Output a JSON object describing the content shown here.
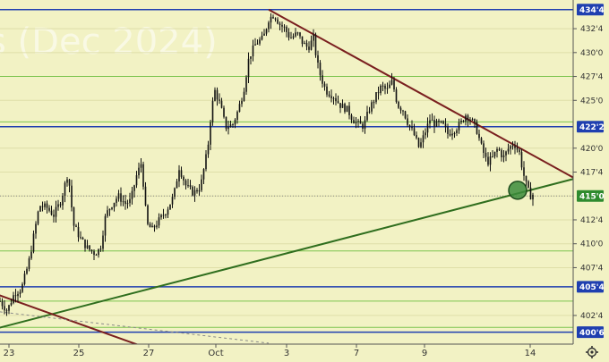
{
  "chart_data": {
    "type": "candlestick",
    "title": "s (Dec 2024)",
    "y_ticks": [
      "434'4",
      "432'4",
      "430'0",
      "427'4",
      "425'0",
      "422'2",
      "420'0",
      "417'4",
      "415'0",
      "412'4",
      "410'0",
      "407'4",
      "405'4",
      "402'4",
      "400'6"
    ],
    "x_ticks": [
      "23",
      "25",
      "27",
      "Oct",
      "3",
      "7",
      "9",
      "14"
    ],
    "price_badges": [
      {
        "label": "434'4",
        "value": 434.5,
        "color": "#1f3fb0"
      },
      {
        "label": "422'2",
        "value": 422.25,
        "color": "#1f3fb0"
      },
      {
        "label": "415'0",
        "value": 415.0,
        "color": "#2e8b2e"
      },
      {
        "label": "405'4",
        "value": 405.5,
        "color": "#1f3fb0"
      },
      {
        "label": "400'6",
        "value": 400.75,
        "color": "#1f3fb0"
      }
    ],
    "blue_levels": [
      434.5,
      422.25,
      405.5,
      400.75
    ],
    "green_levels": [
      427.5,
      422.75,
      409.25,
      404.0,
      401.25
    ],
    "dotted_levels": [
      415.0
    ],
    "ylim": [
      399.5,
      435.5
    ],
    "xlim": [
      0,
      600
    ],
    "colors": {
      "background": "#f2f2c4",
      "blue": "#1f3fb0",
      "green": "#7cc44e",
      "trend_down": "#7a1f1f",
      "trend_up": "#2f6e1e",
      "candle": "#111111"
    },
    "trendlines": [
      {
        "name": "resistance",
        "x0": 300,
        "y0": 434.5,
        "x1": 600,
        "y1": 419.0,
        "color": "#7a1f1f"
      },
      {
        "name": "support",
        "x0": -30,
        "y0": 400.5,
        "x1": 600,
        "y1": 415.8,
        "color": "#2f6e1e"
      },
      {
        "name": "old-resistance",
        "x0": -30,
        "y0": 405.6,
        "x1": 140,
        "y1": 399.9,
        "color": "#7a1f1f"
      },
      {
        "name": "dashed-trend",
        "x0": -30,
        "y0": 403.2,
        "x1": 300,
        "y1": 399.6,
        "color": "#8a8a8a",
        "dashed": true
      }
    ],
    "marker": {
      "x": 578,
      "y": 415.6,
      "color": "#3c8c3c"
    },
    "price_path": [
      [
        0,
        404.0
      ],
      [
        8,
        403.0
      ],
      [
        16,
        404.8
      ],
      [
        24,
        405.3
      ],
      [
        32,
        408.0
      ],
      [
        38,
        411.0
      ],
      [
        44,
        414.0
      ],
      [
        52,
        413.8
      ],
      [
        60,
        413.0
      ],
      [
        68,
        414.5
      ],
      [
        76,
        417.5
      ],
      [
        82,
        412.0
      ],
      [
        90,
        410.5
      ],
      [
        98,
        409.5
      ],
      [
        106,
        409.0
      ],
      [
        112,
        409.5
      ],
      [
        118,
        413.0
      ],
      [
        124,
        414.0
      ],
      [
        132,
        415.0
      ],
      [
        140,
        414.2
      ],
      [
        146,
        414.5
      ],
      [
        152,
        417.0
      ],
      [
        158,
        418.5
      ],
      [
        164,
        412.0
      ],
      [
        170,
        411.5
      ],
      [
        178,
        412.5
      ],
      [
        186,
        413.5
      ],
      [
        194,
        415.0
      ],
      [
        200,
        418.0
      ],
      [
        208,
        416.0
      ],
      [
        216,
        415.3
      ],
      [
        224,
        416.0
      ],
      [
        232,
        420.0
      ],
      [
        236,
        424.0
      ],
      [
        240,
        426.0
      ],
      [
        246,
        424.5
      ],
      [
        252,
        422.2
      ],
      [
        260,
        422.5
      ],
      [
        266,
        424.0
      ],
      [
        272,
        426.0
      ],
      [
        278,
        429.5
      ],
      [
        286,
        431.0
      ],
      [
        294,
        431.5
      ],
      [
        300,
        433.5
      ],
      [
        306,
        434.0
      ],
      [
        312,
        433.0
      ],
      [
        318,
        432.5
      ],
      [
        324,
        431.5
      ],
      [
        332,
        432.0
      ],
      [
        338,
        431.0
      ],
      [
        344,
        430.5
      ],
      [
        350,
        431.5
      ],
      [
        354,
        429.0
      ],
      [
        358,
        427.5
      ],
      [
        364,
        426.0
      ],
      [
        372,
        425.5
      ],
      [
        380,
        424.5
      ],
      [
        388,
        424.0
      ],
      [
        394,
        423.0
      ],
      [
        400,
        422.5
      ],
      [
        406,
        422.3
      ],
      [
        412,
        424.0
      ],
      [
        420,
        425.5
      ],
      [
        426,
        426.5
      ],
      [
        432,
        426.0
      ],
      [
        438,
        427.0
      ],
      [
        444,
        424.5
      ],
      [
        450,
        424.0
      ],
      [
        456,
        422.5
      ],
      [
        462,
        421.5
      ],
      [
        468,
        420.0
      ],
      [
        474,
        421.5
      ],
      [
        480,
        423.0
      ],
      [
        486,
        422.5
      ],
      [
        494,
        422.5
      ],
      [
        500,
        421.5
      ],
      [
        508,
        422.0
      ],
      [
        514,
        422.5
      ],
      [
        520,
        423.5
      ],
      [
        526,
        423.0
      ],
      [
        532,
        422.0
      ],
      [
        538,
        420.0
      ],
      [
        544,
        418.5
      ],
      [
        550,
        419.0
      ],
      [
        556,
        420.0
      ],
      [
        562,
        419.0
      ],
      [
        568,
        420.0
      ],
      [
        574,
        420.5
      ],
      [
        580,
        419.5
      ],
      [
        584,
        417.5
      ],
      [
        588,
        416.0
      ],
      [
        592,
        415.0
      ],
      [
        596,
        415.2
      ]
    ]
  }
}
